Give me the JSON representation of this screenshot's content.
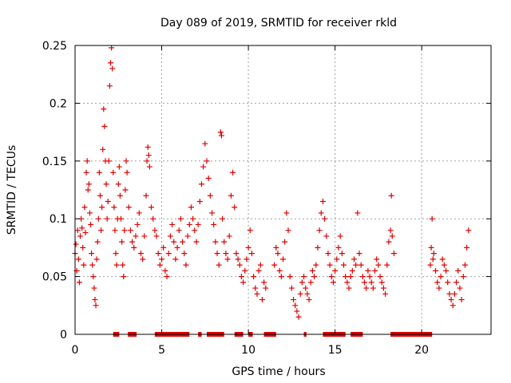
{
  "chart_data": {
    "type": "scatter",
    "title": "Day 089 of 2019, SRMTID for receiver rkld",
    "xlabel": "GPS time / hours",
    "ylabel": "SRMTID / TECUs",
    "xlim": [
      0,
      24
    ],
    "ylim": [
      0,
      0.25
    ],
    "xticks": [
      0,
      5,
      10,
      15,
      20
    ],
    "xtick_labels": [
      "0",
      "5",
      "10",
      "15",
      "20"
    ],
    "yticks": [
      0,
      0.05,
      0.1,
      0.15,
      0.2,
      0.25
    ],
    "ytick_labels": [
      "0",
      "0.05",
      "0.1",
      "0.15",
      "0.2",
      "0.25"
    ],
    "grid": true,
    "marker": "plus",
    "color": "#e00000",
    "series": [
      {
        "name": "SRMTID",
        "points": [
          [
            0.0,
            0.07
          ],
          [
            0.05,
            0.078
          ],
          [
            0.1,
            0.055
          ],
          [
            0.15,
            0.09
          ],
          [
            0.2,
            0.065
          ],
          [
            0.25,
            0.045
          ],
          [
            0.3,
            0.085
          ],
          [
            0.35,
            0.1
          ],
          [
            0.4,
            0.092
          ],
          [
            0.45,
            0.075
          ],
          [
            0.5,
            0.06
          ],
          [
            0.55,
            0.11
          ],
          [
            0.6,
            0.088
          ],
          [
            0.65,
            0.14
          ],
          [
            0.7,
            0.15
          ],
          [
            0.75,
            0.125
          ],
          [
            0.8,
            0.13
          ],
          [
            0.85,
            0.105
          ],
          [
            0.9,
            0.095
          ],
          [
            0.95,
            0.07
          ],
          [
            1.0,
            0.06
          ],
          [
            1.05,
            0.05
          ],
          [
            1.1,
            0.04
          ],
          [
            1.15,
            0.03
          ],
          [
            1.2,
            0.025
          ],
          [
            1.25,
            0.065
          ],
          [
            1.3,
            0.08
          ],
          [
            1.35,
            0.1
          ],
          [
            1.4,
            0.14
          ],
          [
            1.45,
            0.12
          ],
          [
            1.5,
            0.09
          ],
          [
            1.55,
            0.11
          ],
          [
            1.6,
            0.16
          ],
          [
            1.65,
            0.195
          ],
          [
            1.7,
            0.18
          ],
          [
            1.75,
            0.15
          ],
          [
            1.8,
            0.13
          ],
          [
            1.85,
            0.1
          ],
          [
            1.9,
            0.115
          ],
          [
            1.95,
            0.15
          ],
          [
            2.0,
            0.215
          ],
          [
            2.05,
            0.235
          ],
          [
            2.1,
            0.248
          ],
          [
            2.15,
            0.23
          ],
          [
            2.2,
            0.14
          ],
          [
            2.25,
            0.11
          ],
          [
            2.3,
            0.09
          ],
          [
            2.35,
            0.07
          ],
          [
            2.4,
            0.06
          ],
          [
            2.45,
            0.1
          ],
          [
            2.5,
            0.13
          ],
          [
            2.55,
            0.145
          ],
          [
            2.6,
            0.12
          ],
          [
            2.65,
            0.1
          ],
          [
            2.7,
            0.08
          ],
          [
            2.75,
            0.06
          ],
          [
            2.8,
            0.05
          ],
          [
            2.85,
            0.09
          ],
          [
            2.9,
            0.125
          ],
          [
            2.95,
            0.15
          ],
          [
            3.0,
            0.14
          ],
          [
            3.1,
            0.11
          ],
          [
            3.2,
            0.09
          ],
          [
            3.3,
            0.08
          ],
          [
            3.4,
            0.075
          ],
          [
            3.5,
            0.085
          ],
          [
            3.6,
            0.095
          ],
          [
            3.7,
            0.105
          ],
          [
            3.8,
            0.07
          ],
          [
            3.9,
            0.065
          ],
          [
            4.0,
            0.085
          ],
          [
            4.1,
            0.12
          ],
          [
            4.15,
            0.15
          ],
          [
            4.2,
            0.162
          ],
          [
            4.25,
            0.155
          ],
          [
            4.3,
            0.145
          ],
          [
            4.4,
            0.11
          ],
          [
            4.5,
            0.1
          ],
          [
            4.6,
            0.09
          ],
          [
            4.7,
            0.085
          ],
          [
            4.8,
            0.07
          ],
          [
            4.9,
            0.06
          ],
          [
            5.0,
            0.065
          ],
          [
            5.1,
            0.075
          ],
          [
            5.2,
            0.055
          ],
          [
            5.3,
            0.05
          ],
          [
            5.4,
            0.07
          ],
          [
            5.5,
            0.085
          ],
          [
            5.6,
            0.095
          ],
          [
            5.7,
            0.08
          ],
          [
            5.8,
            0.065
          ],
          [
            5.9,
            0.075
          ],
          [
            6.0,
            0.09
          ],
          [
            6.1,
            0.1
          ],
          [
            6.2,
            0.08
          ],
          [
            6.3,
            0.07
          ],
          [
            6.4,
            0.06
          ],
          [
            6.5,
            0.085
          ],
          [
            6.6,
            0.095
          ],
          [
            6.7,
            0.11
          ],
          [
            6.8,
            0.1
          ],
          [
            6.9,
            0.09
          ],
          [
            7.0,
            0.08
          ],
          [
            7.1,
            0.095
          ],
          [
            7.2,
            0.115
          ],
          [
            7.3,
            0.13
          ],
          [
            7.4,
            0.145
          ],
          [
            7.5,
            0.165
          ],
          [
            7.6,
            0.15
          ],
          [
            7.7,
            0.135
          ],
          [
            7.8,
            0.12
          ],
          [
            7.9,
            0.105
          ],
          [
            8.0,
            0.095
          ],
          [
            8.1,
            0.08
          ],
          [
            8.2,
            0.07
          ],
          [
            8.3,
            0.06
          ],
          [
            8.4,
            0.175
          ],
          [
            8.45,
            0.172
          ],
          [
            8.5,
            0.1
          ],
          [
            8.6,
            0.08
          ],
          [
            8.7,
            0.07
          ],
          [
            8.8,
            0.065
          ],
          [
            8.9,
            0.085
          ],
          [
            9.0,
            0.12
          ],
          [
            9.1,
            0.14
          ],
          [
            9.2,
            0.11
          ],
          [
            9.3,
            0.07
          ],
          [
            9.4,
            0.065
          ],
          [
            9.5,
            0.06
          ],
          [
            9.6,
            0.05
          ],
          [
            9.7,
            0.045
          ],
          [
            9.8,
            0.055
          ],
          [
            9.9,
            0.065
          ],
          [
            10.0,
            0.075
          ],
          [
            10.1,
            0.09
          ],
          [
            10.2,
            0.07
          ],
          [
            10.3,
            0.05
          ],
          [
            10.4,
            0.04
          ],
          [
            10.5,
            0.035
          ],
          [
            10.6,
            0.055
          ],
          [
            10.7,
            0.06
          ],
          [
            10.8,
            0.03
          ],
          [
            10.9,
            0.045
          ],
          [
            11.0,
            0.04
          ],
          [
            11.5,
            0.06
          ],
          [
            11.6,
            0.075
          ],
          [
            11.7,
            0.07
          ],
          [
            11.8,
            0.055
          ],
          [
            11.9,
            0.05
          ],
          [
            12.0,
            0.065
          ],
          [
            12.1,
            0.08
          ],
          [
            12.2,
            0.105
          ],
          [
            12.3,
            0.09
          ],
          [
            12.4,
            0.05
          ],
          [
            12.5,
            0.04
          ],
          [
            12.6,
            0.03
          ],
          [
            12.7,
            0.025
          ],
          [
            12.8,
            0.02
          ],
          [
            12.9,
            0.015
          ],
          [
            13.0,
            0.035
          ],
          [
            13.1,
            0.045
          ],
          [
            13.2,
            0.05
          ],
          [
            13.3,
            0.04
          ],
          [
            13.4,
            0.035
          ],
          [
            13.5,
            0.03
          ],
          [
            13.6,
            0.045
          ],
          [
            13.7,
            0.055
          ],
          [
            13.8,
            0.05
          ],
          [
            13.9,
            0.06
          ],
          [
            14.0,
            0.075
          ],
          [
            14.1,
            0.09
          ],
          [
            14.2,
            0.105
          ],
          [
            14.3,
            0.115
          ],
          [
            14.4,
            0.1
          ],
          [
            14.5,
            0.085
          ],
          [
            14.6,
            0.07
          ],
          [
            14.7,
            0.06
          ],
          [
            14.8,
            0.05
          ],
          [
            14.9,
            0.045
          ],
          [
            15.0,
            0.055
          ],
          [
            15.1,
            0.065
          ],
          [
            15.2,
            0.075
          ],
          [
            15.3,
            0.085
          ],
          [
            15.4,
            0.07
          ],
          [
            15.5,
            0.06
          ],
          [
            15.6,
            0.05
          ],
          [
            15.7,
            0.045
          ],
          [
            15.8,
            0.04
          ],
          [
            15.9,
            0.05
          ],
          [
            16.0,
            0.055
          ],
          [
            16.1,
            0.065
          ],
          [
            16.2,
            0.06
          ],
          [
            16.3,
            0.105
          ],
          [
            16.4,
            0.07
          ],
          [
            16.5,
            0.06
          ],
          [
            16.6,
            0.05
          ],
          [
            16.7,
            0.045
          ],
          [
            16.8,
            0.04
          ],
          [
            16.9,
            0.055
          ],
          [
            17.0,
            0.05
          ],
          [
            17.1,
            0.045
          ],
          [
            17.2,
            0.04
          ],
          [
            17.3,
            0.055
          ],
          [
            17.4,
            0.065
          ],
          [
            17.5,
            0.06
          ],
          [
            17.6,
            0.05
          ],
          [
            17.7,
            0.045
          ],
          [
            17.8,
            0.04
          ],
          [
            17.9,
            0.035
          ],
          [
            18.0,
            0.06
          ],
          [
            18.1,
            0.08
          ],
          [
            18.2,
            0.09
          ],
          [
            18.25,
            0.12
          ],
          [
            18.3,
            0.085
          ],
          [
            18.4,
            0.07
          ],
          [
            20.5,
            0.06
          ],
          [
            20.55,
            0.075
          ],
          [
            20.6,
            0.1
          ],
          [
            20.65,
            0.065
          ],
          [
            20.7,
            0.07
          ],
          [
            20.8,
            0.055
          ],
          [
            20.9,
            0.045
          ],
          [
            21.0,
            0.04
          ],
          [
            21.1,
            0.05
          ],
          [
            21.2,
            0.065
          ],
          [
            21.3,
            0.06
          ],
          [
            21.4,
            0.055
          ],
          [
            21.5,
            0.045
          ],
          [
            21.6,
            0.035
          ],
          [
            21.7,
            0.03
          ],
          [
            21.8,
            0.025
          ],
          [
            21.9,
            0.035
          ],
          [
            22.0,
            0.045
          ],
          [
            22.1,
            0.055
          ],
          [
            22.2,
            0.04
          ],
          [
            22.3,
            0.03
          ],
          [
            22.4,
            0.05
          ],
          [
            22.5,
            0.06
          ],
          [
            22.6,
            0.075
          ],
          [
            22.7,
            0.09
          ]
        ]
      },
      {
        "name": "low-value markers",
        "marker": "bar",
        "x_ranges": [
          [
            2.2,
            2.55
          ],
          [
            3.05,
            3.55
          ],
          [
            4.6,
            6.6
          ],
          [
            7.1,
            7.3
          ],
          [
            7.6,
            8.6
          ],
          [
            9.2,
            9.7
          ],
          [
            10.0,
            10.25
          ],
          [
            10.9,
            11.6
          ],
          [
            13.2,
            13.35
          ],
          [
            14.3,
            15.6
          ],
          [
            15.9,
            16.6
          ],
          [
            18.2,
            20.6
          ]
        ],
        "y": 0.0
      }
    ]
  }
}
